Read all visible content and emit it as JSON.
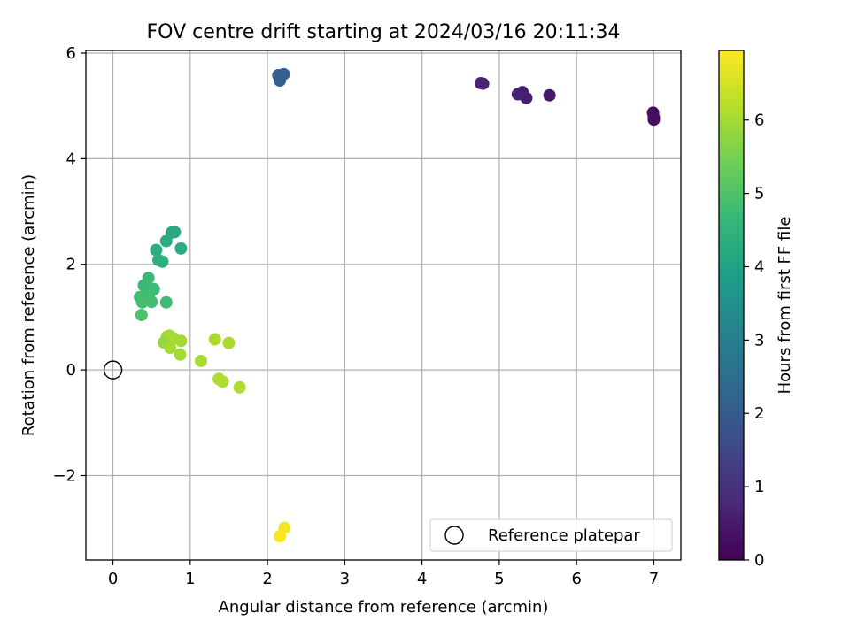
{
  "chart_data": {
    "type": "scatter",
    "title": "FOV centre drift starting at 2024/03/16 20:11:34",
    "xlabel": "Angular distance from reference (arcmin)",
    "ylabel": "Rotation from reference (arcmin)",
    "xlim": [
      -0.35,
      7.35
    ],
    "ylim": [
      -3.6,
      6.05
    ],
    "xticks": [
      0,
      1,
      2,
      3,
      4,
      5,
      6,
      7
    ],
    "xtick_labels": [
      "0",
      "1",
      "2",
      "3",
      "4",
      "5",
      "6",
      "7"
    ],
    "yticks": [
      -2,
      0,
      2,
      4,
      6
    ],
    "ytick_labels": [
      "−2",
      "0",
      "2",
      "4",
      "6"
    ],
    "grid": true,
    "legend": {
      "position": "lower right",
      "entries": [
        "Reference platepar"
      ]
    },
    "reference_point": {
      "name": "Reference platepar",
      "x": 0,
      "y": 0
    },
    "colorbar": {
      "label": "Hours from first FF file",
      "range": [
        0,
        6.95
      ],
      "ticks": [
        0,
        1,
        2,
        3,
        4,
        5,
        6
      ],
      "tick_labels": [
        "0",
        "1",
        "2",
        "3",
        "4",
        "5",
        "6"
      ],
      "colormap": "viridis"
    },
    "colormap_stops": [
      "#440154",
      "#482878",
      "#3e4989",
      "#31688e",
      "#26828e",
      "#1f9e89",
      "#35b779",
      "#6ece58",
      "#b5de2b",
      "#fde725"
    ],
    "points": [
      {
        "x": 6.99,
        "y": 4.87,
        "c": 0.25
      },
      {
        "x": 7.0,
        "y": 4.78,
        "c": 0.25
      },
      {
        "x": 7.0,
        "y": 4.74,
        "c": 0.25
      },
      {
        "x": 5.65,
        "y": 5.2,
        "c": 0.45
      },
      {
        "x": 5.35,
        "y": 5.15,
        "c": 0.55
      },
      {
        "x": 5.3,
        "y": 5.26,
        "c": 0.6
      },
      {
        "x": 5.24,
        "y": 5.22,
        "c": 0.65
      },
      {
        "x": 4.79,
        "y": 5.42,
        "c": 0.7
      },
      {
        "x": 4.76,
        "y": 5.43,
        "c": 0.7
      },
      {
        "x": 2.21,
        "y": 5.6,
        "c": 2.1
      },
      {
        "x": 2.14,
        "y": 5.58,
        "c": 2.1
      },
      {
        "x": 2.16,
        "y": 5.48,
        "c": 2.1
      },
      {
        "x": 0.88,
        "y": 2.3,
        "c": 4.25
      },
      {
        "x": 0.8,
        "y": 2.61,
        "c": 4.2
      },
      {
        "x": 0.76,
        "y": 2.6,
        "c": 4.2
      },
      {
        "x": 0.69,
        "y": 2.44,
        "c": 4.25
      },
      {
        "x": 0.56,
        "y": 2.27,
        "c": 4.35
      },
      {
        "x": 0.59,
        "y": 2.08,
        "c": 4.35
      },
      {
        "x": 0.64,
        "y": 2.05,
        "c": 4.4
      },
      {
        "x": 0.46,
        "y": 1.74,
        "c": 4.7
      },
      {
        "x": 0.4,
        "y": 1.6,
        "c": 4.7
      },
      {
        "x": 0.53,
        "y": 1.53,
        "c": 4.75
      },
      {
        "x": 0.46,
        "y": 1.5,
        "c": 4.75
      },
      {
        "x": 0.47,
        "y": 1.37,
        "c": 4.8
      },
      {
        "x": 0.35,
        "y": 1.38,
        "c": 4.8
      },
      {
        "x": 0.5,
        "y": 1.29,
        "c": 4.85
      },
      {
        "x": 0.69,
        "y": 1.28,
        "c": 4.75
      },
      {
        "x": 0.38,
        "y": 1.28,
        "c": 4.85
      },
      {
        "x": 0.37,
        "y": 1.04,
        "c": 5.0
      },
      {
        "x": 0.73,
        "y": 0.65,
        "c": 6.0
      },
      {
        "x": 0.7,
        "y": 0.63,
        "c": 6.0
      },
      {
        "x": 0.78,
        "y": 0.6,
        "c": 6.0
      },
      {
        "x": 0.88,
        "y": 0.55,
        "c": 6.0
      },
      {
        "x": 0.66,
        "y": 0.52,
        "c": 5.8
      },
      {
        "x": 0.74,
        "y": 0.42,
        "c": 6.0
      },
      {
        "x": 0.87,
        "y": 0.29,
        "c": 6.0
      },
      {
        "x": 1.32,
        "y": 0.58,
        "c": 6.05
      },
      {
        "x": 1.5,
        "y": 0.51,
        "c": 6.05
      },
      {
        "x": 1.14,
        "y": 0.17,
        "c": 6.05
      },
      {
        "x": 1.37,
        "y": -0.17,
        "c": 6.1
      },
      {
        "x": 1.42,
        "y": -0.22,
        "c": 6.1
      },
      {
        "x": 1.64,
        "y": -0.33,
        "c": 6.1
      },
      {
        "x": 2.22,
        "y": -2.99,
        "c": 6.85
      },
      {
        "x": 2.16,
        "y": -3.15,
        "c": 6.9
      }
    ]
  }
}
